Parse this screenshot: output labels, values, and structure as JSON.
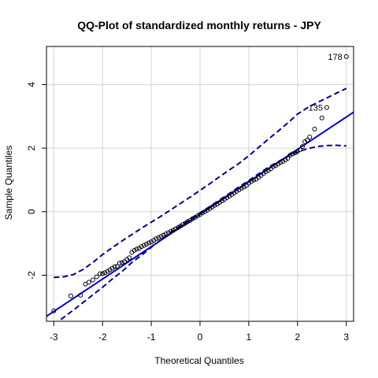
{
  "chart_data": {
    "type": "scatter",
    "title": "QQ-Plot of standardized monthly returns - JPY",
    "xlabel": "Theoretical Quantiles",
    "ylabel": "Sample Quantiles",
    "xlim": [
      -3.15,
      3.15
    ],
    "ylim": [
      -3.45,
      5.2
    ],
    "xticks": [
      -3,
      -2,
      -1,
      0,
      1,
      2,
      3
    ],
    "yticks": [
      -2,
      0,
      2,
      4
    ],
    "grid": true,
    "legend": "none",
    "reference_line": {
      "slope": 1.02,
      "intercept": -0.08
    },
    "confidence_band": {
      "x": [
        -3.0,
        -2.8,
        -2.6,
        -2.4,
        -2.2,
        -2.0,
        -1.8,
        -1.6,
        -1.4,
        -1.2,
        -1.0,
        -0.8,
        -0.6,
        -0.4,
        -0.2,
        0.0,
        0.2,
        0.4,
        0.6,
        0.8,
        1.0,
        1.2,
        1.4,
        1.6,
        1.8,
        2.0,
        2.2,
        2.4,
        2.6,
        2.8,
        3.0
      ],
      "upper": [
        -2.07,
        -2.05,
        -1.98,
        -1.82,
        -1.6,
        -1.35,
        -1.13,
        -0.92,
        -0.72,
        -0.52,
        -0.33,
        -0.14,
        0.06,
        0.26,
        0.46,
        0.67,
        0.88,
        1.1,
        1.31,
        1.52,
        1.76,
        2.02,
        2.28,
        2.53,
        2.79,
        3.07,
        3.27,
        3.43,
        3.58,
        3.73,
        3.88
      ],
      "lower": [
        -3.55,
        -3.33,
        -3.1,
        -2.86,
        -2.62,
        -2.38,
        -2.12,
        -1.88,
        -1.6,
        -1.37,
        -1.12,
        -0.88,
        -0.65,
        -0.44,
        -0.24,
        -0.04,
        0.16,
        0.37,
        0.57,
        0.78,
        0.98,
        1.19,
        1.4,
        1.57,
        1.74,
        1.88,
        1.98,
        2.05,
        2.08,
        2.09,
        2.07
      ]
    },
    "points": {
      "x": [
        -3.0,
        -2.65,
        -2.45,
        -2.35,
        -2.28,
        -2.2,
        -2.12,
        -2.05,
        -2.0,
        -1.95,
        -1.9,
        -1.85,
        -1.8,
        -1.75,
        -1.7,
        -1.65,
        -1.6,
        -1.55,
        -1.5,
        -1.45,
        -1.4,
        -1.35,
        -1.3,
        -1.25,
        -1.2,
        -1.15,
        -1.1,
        -1.05,
        -1.0,
        -0.95,
        -0.9,
        -0.85,
        -0.8,
        -0.75,
        -0.7,
        -0.65,
        -0.6,
        -0.55,
        -0.5,
        -0.45,
        -0.4,
        -0.35,
        -0.3,
        -0.25,
        -0.2,
        -0.15,
        -0.1,
        -0.05,
        0.0,
        0.05,
        0.1,
        0.15,
        0.2,
        0.25,
        0.3,
        0.35,
        0.4,
        0.45,
        0.5,
        0.55,
        0.6,
        0.65,
        0.7,
        0.75,
        0.8,
        0.85,
        0.9,
        0.95,
        1.0,
        1.05,
        1.1,
        1.15,
        1.2,
        1.25,
        1.3,
        1.35,
        1.4,
        1.45,
        1.5,
        1.55,
        1.6,
        1.65,
        1.7,
        1.75,
        1.8,
        1.85,
        1.9,
        1.95,
        2.0,
        2.05,
        2.1,
        2.15,
        2.2,
        2.25,
        2.35,
        2.5,
        2.6,
        3.0
      ],
      "y": [
        -3.12,
        -2.65,
        -2.63,
        -2.28,
        -2.22,
        -2.15,
        -2.05,
        -1.95,
        -1.95,
        -1.92,
        -1.88,
        -1.83,
        -1.78,
        -1.73,
        -1.72,
        -1.62,
        -1.6,
        -1.57,
        -1.5,
        -1.45,
        -1.28,
        -1.22,
        -1.18,
        -1.15,
        -1.1,
        -1.06,
        -1.02,
        -0.98,
        -0.95,
        -0.9,
        -0.85,
        -0.82,
        -0.78,
        -0.74,
        -0.7,
        -0.66,
        -0.62,
        -0.58,
        -0.54,
        -0.5,
        -0.45,
        -0.4,
        -0.36,
        -0.31,
        -0.27,
        -0.22,
        -0.18,
        -0.13,
        -0.09,
        -0.04,
        0.0,
        0.05,
        0.1,
        0.15,
        0.2,
        0.24,
        0.29,
        0.34,
        0.39,
        0.44,
        0.49,
        0.54,
        0.59,
        0.64,
        0.69,
        0.74,
        0.78,
        0.82,
        0.9,
        0.95,
        1.0,
        1.02,
        1.08,
        1.14,
        1.2,
        1.26,
        1.3,
        1.35,
        1.42,
        1.45,
        1.5,
        1.55,
        1.58,
        1.63,
        1.68,
        1.78,
        1.82,
        1.85,
        1.9,
        1.95,
        2.05,
        2.2,
        2.25,
        2.35,
        2.6,
        2.95,
        3.28,
        4.88
      ]
    },
    "annotations": [
      {
        "label": "178",
        "x": 3.0,
        "y": 4.88
      },
      {
        "label": "135",
        "x": 2.6,
        "y": 3.28
      }
    ],
    "colors": {
      "line": "#0000CD",
      "band": "#00008B",
      "points": "#000000",
      "grid": "#d3d3d3",
      "axis": "#000000"
    }
  }
}
